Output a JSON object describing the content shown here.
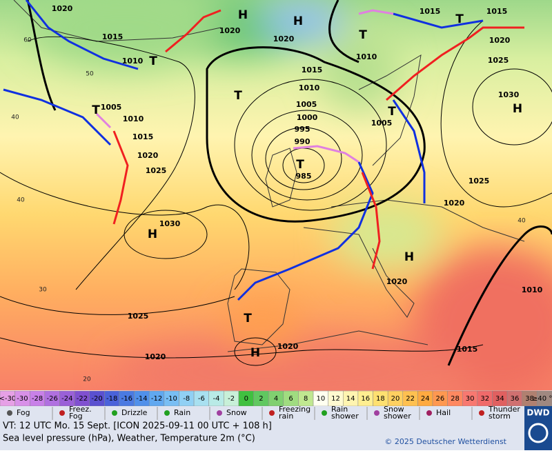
{
  "map": {
    "isobar_labels": [
      "1020",
      "1015",
      "1010",
      "1020",
      "1020",
      "1015",
      "1010",
      "1005",
      "1000",
      "995",
      "990",
      "985",
      "1005",
      "1010",
      "1015",
      "1020",
      "1025",
      "1030",
      "1025",
      "1020",
      "1020",
      "1010",
      "1005",
      "1015",
      "1015",
      "1020",
      "1025",
      "1030",
      "1025",
      "1020",
      "1020",
      "1010",
      "1015"
    ],
    "highs": [
      "H",
      "H",
      "H",
      "H",
      "H",
      "H"
    ],
    "lows": [
      "T",
      "T",
      "T",
      "T",
      "T",
      "T",
      "T",
      "T"
    ],
    "latitude_labels": [
      "60",
      "50",
      "40",
      "40",
      "30",
      "20",
      "40"
    ]
  },
  "color_scale": {
    "labels": [
      "<-30",
      -30,
      -28,
      -26,
      -24,
      -22,
      -20,
      -18,
      -16,
      -14,
      -12,
      -10,
      -8,
      -6,
      -4,
      -2,
      0,
      2,
      4,
      6,
      8,
      10,
      12,
      14,
      16,
      18,
      20,
      22,
      24,
      26,
      28,
      30,
      32,
      34,
      36,
      38,
      "≥40 °C"
    ],
    "colors": [
      "#e6a0e6",
      "#d890e8",
      "#c880e8",
      "#b070e0",
      "#9a60d8",
      "#8050d0",
      "#5a50d0",
      "#4a62da",
      "#4a7ae2",
      "#5090ea",
      "#60a8f0",
      "#78bef4",
      "#90d0f4",
      "#a8e0f0",
      "#b8eae6",
      "#c8f0d8",
      "#40c040",
      "#60c860",
      "#80d070",
      "#a0dc80",
      "#c0e890",
      "#fffff0",
      "#fffad0",
      "#fff4b0",
      "#ffee90",
      "#ffe070",
      "#ffd060",
      "#ffc050",
      "#ffaa40",
      "#ff9850",
      "#ff8860",
      "#f87870",
      "#f06a6a",
      "#e06060",
      "#d07070",
      "#b08070",
      "#a08880"
    ]
  },
  "legend": [
    {
      "label": [
        "Fog"
      ],
      "color": "#555555"
    },
    {
      "label": [
        "Freez.",
        "Fog"
      ],
      "color": "#c02020"
    },
    {
      "label": [
        "Drizzle"
      ],
      "color": "#20a020"
    },
    {
      "label": [
        "Rain"
      ],
      "color": "#20a020"
    },
    {
      "label": [
        "Snow"
      ],
      "color": "#a040a0"
    },
    {
      "label": [
        "Freezing",
        "rain"
      ],
      "color": "#c02020"
    },
    {
      "label": [
        "Rain",
        "shower"
      ],
      "color": "#20a020"
    },
    {
      "label": [
        "Snow",
        "shower"
      ],
      "color": "#a040a0"
    },
    {
      "label": [
        "Hail"
      ],
      "color": "#a02060"
    },
    {
      "label": [
        "Thunder",
        "storm"
      ],
      "color": "#c02020"
    }
  ],
  "footer": {
    "valid_time": "VT: 12 UTC Mo.  15 Sept. [ICON 2025-09-11  00 UTC + 108 h]",
    "description": "Sea level pressure (hPa), Weather, Temperature 2m (°C)",
    "copyright": "© 2025 Deutscher Wetterdienst",
    "logo": "DWD"
  }
}
